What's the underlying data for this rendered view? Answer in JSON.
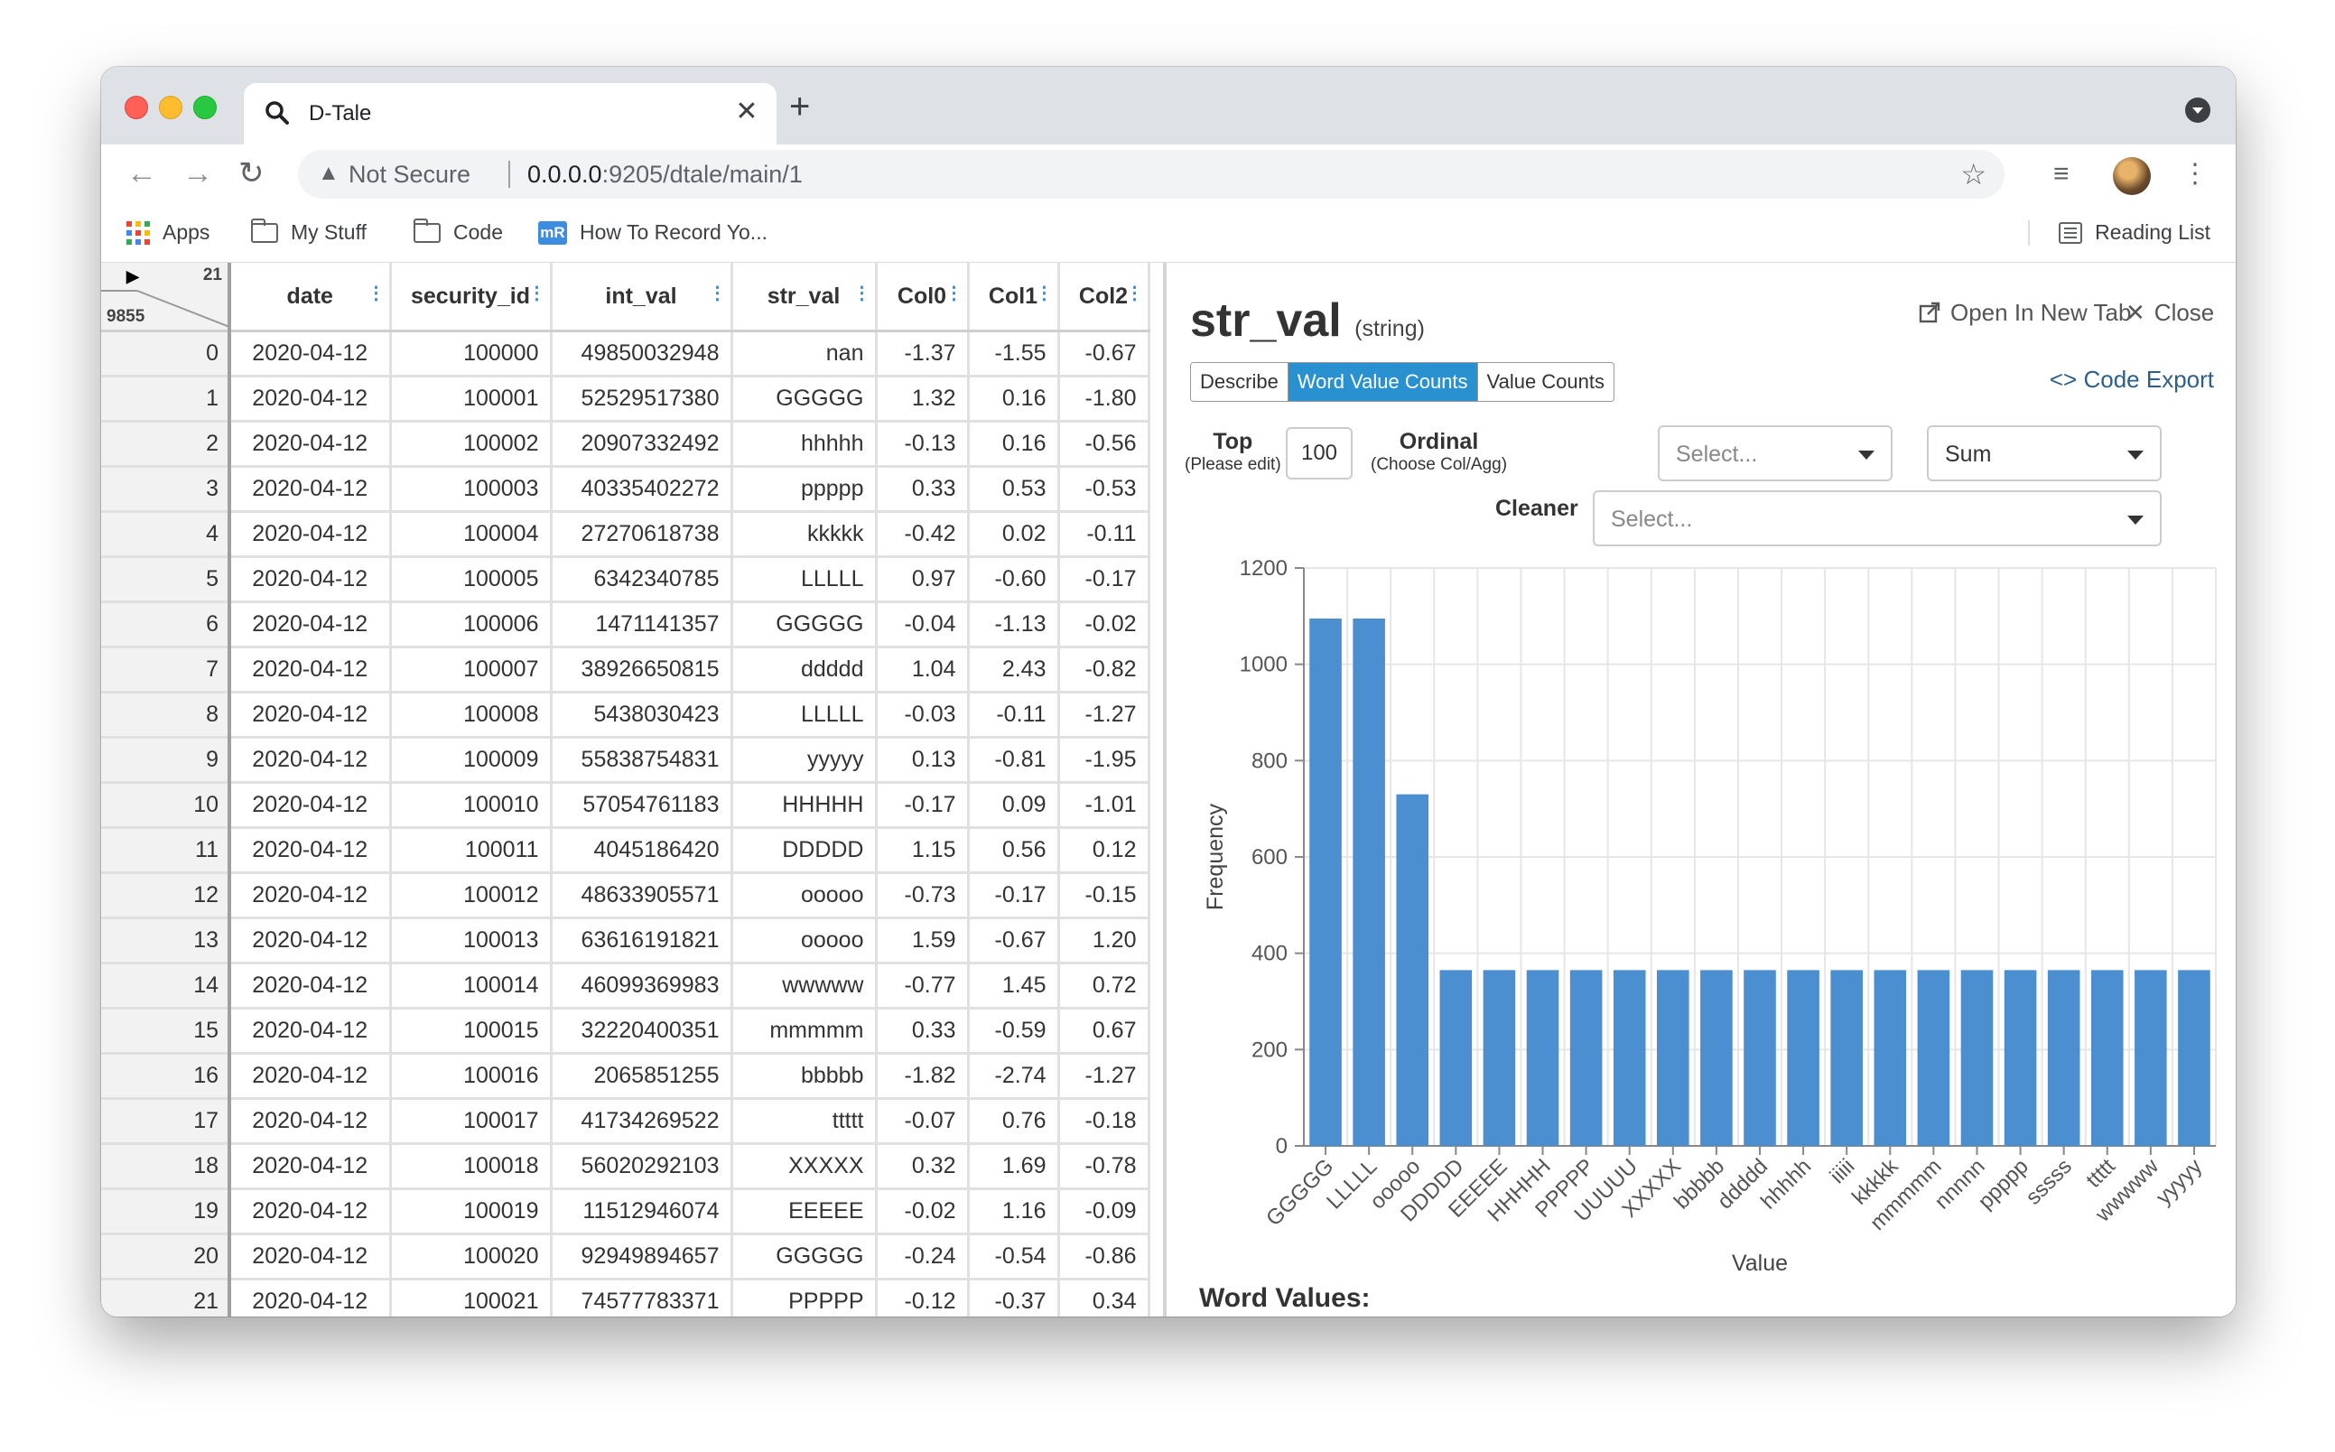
{
  "browser": {
    "tab_title": "D-Tale",
    "not_secure": "Not Secure",
    "url_host": "0.0.0.0",
    "url_path": ":9205/dtale/main/1",
    "bookmarks": [
      "Apps",
      "My Stuff",
      "Code",
      "How To Record Yo..."
    ],
    "reading_list": "Reading List",
    "mr_badge": "mR"
  },
  "grid": {
    "total_cols": "21",
    "total_rows": "9855",
    "columns": [
      "date",
      "security_id",
      "int_val",
      "str_val",
      "Col0",
      "Col1",
      "Col2"
    ],
    "rows": [
      [
        "0",
        "2020-04-12",
        "100000",
        "49850032948",
        "nan",
        "-1.37",
        "-1.55",
        "-0.67"
      ],
      [
        "1",
        "2020-04-12",
        "100001",
        "52529517380",
        "GGGGG",
        "1.32",
        "0.16",
        "-1.80"
      ],
      [
        "2",
        "2020-04-12",
        "100002",
        "20907332492",
        "hhhhh",
        "-0.13",
        "0.16",
        "-0.56"
      ],
      [
        "3",
        "2020-04-12",
        "100003",
        "40335402272",
        "ppppp",
        "0.33",
        "0.53",
        "-0.53"
      ],
      [
        "4",
        "2020-04-12",
        "100004",
        "27270618738",
        "kkkkk",
        "-0.42",
        "0.02",
        "-0.11"
      ],
      [
        "5",
        "2020-04-12",
        "100005",
        "6342340785",
        "LLLLL",
        "0.97",
        "-0.60",
        "-0.17"
      ],
      [
        "6",
        "2020-04-12",
        "100006",
        "1471141357",
        "GGGGG",
        "-0.04",
        "-1.13",
        "-0.02"
      ],
      [
        "7",
        "2020-04-12",
        "100007",
        "38926650815",
        "ddddd",
        "1.04",
        "2.43",
        "-0.82"
      ],
      [
        "8",
        "2020-04-12",
        "100008",
        "5438030423",
        "LLLLL",
        "-0.03",
        "-0.11",
        "-1.27"
      ],
      [
        "9",
        "2020-04-12",
        "100009",
        "55838754831",
        "yyyyy",
        "0.13",
        "-0.81",
        "-1.95"
      ],
      [
        "10",
        "2020-04-12",
        "100010",
        "57054761183",
        "HHHHH",
        "-0.17",
        "0.09",
        "-1.01"
      ],
      [
        "11",
        "2020-04-12",
        "100011",
        "4045186420",
        "DDDDD",
        "1.15",
        "0.56",
        "0.12"
      ],
      [
        "12",
        "2020-04-12",
        "100012",
        "48633905571",
        "ooooo",
        "-0.73",
        "-0.17",
        "-0.15"
      ],
      [
        "13",
        "2020-04-12",
        "100013",
        "63616191821",
        "ooooo",
        "1.59",
        "-0.67",
        "1.20"
      ],
      [
        "14",
        "2020-04-12",
        "100014",
        "46099369983",
        "wwwww",
        "-0.77",
        "1.45",
        "0.72"
      ],
      [
        "15",
        "2020-04-12",
        "100015",
        "32220400351",
        "mmmmm",
        "0.33",
        "-0.59",
        "0.67"
      ],
      [
        "16",
        "2020-04-12",
        "100016",
        "2065851255",
        "bbbbb",
        "-1.82",
        "-2.74",
        "-1.27"
      ],
      [
        "17",
        "2020-04-12",
        "100017",
        "41734269522",
        "ttttt",
        "-0.07",
        "0.76",
        "-0.18"
      ],
      [
        "18",
        "2020-04-12",
        "100018",
        "56020292103",
        "XXXXX",
        "0.32",
        "1.69",
        "-0.78"
      ],
      [
        "19",
        "2020-04-12",
        "100019",
        "11512946074",
        "EEEEE",
        "-0.02",
        "1.16",
        "-0.09"
      ],
      [
        "20",
        "2020-04-12",
        "100020",
        "92949894657",
        "GGGGG",
        "-0.24",
        "-0.54",
        "-0.86"
      ],
      [
        "21",
        "2020-04-12",
        "100021",
        "74577783371",
        "PPPPP",
        "-0.12",
        "-0.37",
        "0.34"
      ]
    ]
  },
  "panel": {
    "title": "str_val",
    "dtype": "(string)",
    "open_new_tab": "Open In New Tab",
    "close": "Close",
    "code_export": "Code Export",
    "tabs": [
      "Describe",
      "Word Value Counts",
      "Value Counts"
    ],
    "active_tab": "Word Value Counts",
    "top_label": "Top",
    "top_hint": "(Please edit)",
    "top_value": "100",
    "ordinal_label": "Ordinal",
    "ordinal_hint": "(Choose Col/Agg)",
    "ordinal_placeholder": "Select...",
    "agg_value": "Sum",
    "cleaner_label": "Cleaner",
    "cleaner_placeholder": "Select...",
    "word_values_heading": "Word Values:"
  },
  "chart_data": {
    "type": "bar",
    "xlabel": "Value",
    "ylabel": "Frequency",
    "ylim": [
      0,
      1200
    ],
    "yticks": [
      0,
      200,
      400,
      600,
      800,
      1000,
      1200
    ],
    "grid": true,
    "bar_color": "#4b8fd1",
    "categories": [
      "GGGGG",
      "LLLLL",
      "ooooo",
      "DDDDD",
      "EEEEE",
      "HHHHH",
      "PPPPP",
      "UUUUU",
      "XXXXX",
      "bbbbb",
      "ddddd",
      "hhhhh",
      "iiiii",
      "kkkkk",
      "mmmmm",
      "nnnnn",
      "ppppp",
      "sssss",
      "ttttt",
      "wwwww",
      "yyyyy"
    ],
    "values": [
      1095,
      1095,
      730,
      365,
      365,
      365,
      365,
      365,
      365,
      365,
      365,
      365,
      365,
      365,
      365,
      365,
      365,
      365,
      365,
      365,
      365
    ]
  }
}
